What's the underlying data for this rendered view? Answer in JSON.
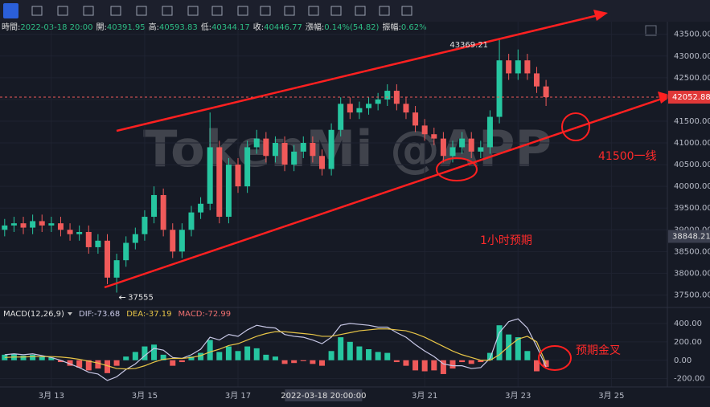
{
  "info_bar": [
    [
      "時間:",
      "2022-03-18 20:00"
    ],
    [
      "開:",
      "40391.95"
    ],
    [
      "高:",
      "40593.83"
    ],
    [
      "低:",
      "40344.17"
    ],
    [
      "收:",
      "40446.77"
    ],
    [
      "漲幅:",
      "0.14%(54.82)"
    ],
    [
      "振幅:",
      "0.62%"
    ]
  ],
  "annotations": {
    "support": "41500一线",
    "expectation": "1小时预期",
    "golden_cross": "预期金叉",
    "watermark": "TokenMi @APP"
  },
  "chart_data": [
    {
      "type": "candlestick",
      "x": [
        12,
        12.2,
        12.4,
        12.6,
        12.8,
        13,
        13.2,
        13.4,
        13.6,
        13.8,
        14,
        14.2,
        14.4,
        14.6,
        14.8,
        15,
        15.2,
        15.4,
        15.6,
        15.8,
        16,
        16.2,
        16.4,
        16.6,
        16.8,
        17,
        17.2,
        17.4,
        17.6,
        17.8,
        18,
        18.2,
        18.4,
        18.6,
        18.8,
        19,
        19.2,
        19.4,
        19.6,
        19.8,
        20,
        20.2,
        20.4,
        20.6,
        20.8,
        21,
        21.2,
        21.4,
        21.6,
        21.8,
        22,
        22.2,
        22.4,
        22.6,
        22.8,
        23,
        23.2,
        23.4,
        23.6
      ],
      "open": [
        39000,
        39100,
        39150,
        39050,
        39200,
        39100,
        39150,
        39000,
        38900,
        38950,
        38600,
        38750,
        37900,
        38300,
        38700,
        38900,
        39300,
        39800,
        39000,
        38500,
        39000,
        39400,
        39600,
        40900,
        39300,
        40500,
        40000,
        40900,
        41100,
        40700,
        41000,
        40500,
        40800,
        41000,
        40700,
        40400,
        41300,
        41900,
        41700,
        41800,
        41900,
        42000,
        42200,
        41900,
        41700,
        41400,
        41200,
        41100,
        40700,
        40900,
        41100,
        40800,
        40900,
        41600,
        42900,
        42600,
        42900,
        42600,
        42300
      ],
      "high": [
        39250,
        39300,
        39300,
        39350,
        39350,
        39300,
        39300,
        39150,
        39100,
        39100,
        38900,
        38900,
        38450,
        38850,
        39050,
        39450,
        40000,
        39950,
        39150,
        39150,
        39550,
        39750,
        41700,
        41050,
        40650,
        40650,
        41050,
        41300,
        41250,
        41150,
        41150,
        40950,
        41150,
        41150,
        40850,
        41450,
        42050,
        42050,
        41950,
        42050,
        42150,
        42350,
        42350,
        42050,
        41850,
        41550,
        41350,
        41250,
        41050,
        41250,
        41250,
        41050,
        41750,
        43369.21,
        43050,
        43150,
        43050,
        42750,
        42450
      ],
      "low": [
        38850,
        38950,
        38900,
        38900,
        38950,
        38950,
        38850,
        38750,
        38750,
        38450,
        38450,
        37750,
        37555,
        38150,
        38550,
        38750,
        39150,
        38850,
        38350,
        38350,
        38850,
        39250,
        39450,
        39150,
        39150,
        39850,
        39850,
        40750,
        40550,
        40550,
        40350,
        40350,
        40650,
        40550,
        40250,
        40250,
        41150,
        41550,
        41550,
        41650,
        41750,
        41850,
        41750,
        41550,
        41250,
        41050,
        40950,
        40550,
        40550,
        40750,
        40650,
        40650,
        40750,
        41450,
        42450,
        42450,
        42450,
        42150,
        41850
      ],
      "close": [
        39100,
        39150,
        39050,
        39200,
        39100,
        39150,
        39000,
        38900,
        38950,
        38600,
        38750,
        37900,
        38300,
        38700,
        38900,
        39300,
        39800,
        39000,
        38500,
        39000,
        39400,
        39600,
        40900,
        39300,
        40500,
        40000,
        40900,
        41100,
        40700,
        41000,
        40500,
        40800,
        41000,
        40700,
        40400,
        41300,
        41900,
        41700,
        41800,
        41900,
        42000,
        42200,
        41900,
        41700,
        41400,
        41200,
        41100,
        40700,
        40900,
        41100,
        40800,
        40900,
        41600,
        42900,
        42600,
        42900,
        42600,
        42300,
        42052.88
      ],
      "up_color": "#26c6a0",
      "down_color": "#f05a5a",
      "xlim": [
        11.9,
        26.2
      ],
      "xticks": [
        {
          "value": 13,
          "label": "3月 13"
        },
        {
          "value": 15,
          "label": "3月 15"
        },
        {
          "value": 17,
          "label": "3月 17"
        },
        {
          "value": 21,
          "label": "3月 21"
        },
        {
          "value": 23,
          "label": "3月 23"
        },
        {
          "value": 25,
          "label": "3月 25"
        }
      ],
      "ylim": [
        37250,
        43550
      ],
      "yticks": [
        {
          "value": 37500,
          "label": "37500.00"
        },
        {
          "value": 38000,
          "label": "38000.00"
        },
        {
          "value": 38500,
          "label": "38500.00"
        },
        {
          "value": 39000,
          "label": "39000.00"
        },
        {
          "value": 39500,
          "label": "39500.00"
        },
        {
          "value": 40000,
          "label": "40000.00"
        },
        {
          "value": 40500,
          "label": "40500.00"
        },
        {
          "value": 41000,
          "label": "41000.00"
        },
        {
          "value": 41500,
          "label": "41500.00"
        },
        {
          "value": 42000,
          "label": "42000.00"
        },
        {
          "value": 42500,
          "label": "42500.00"
        },
        {
          "value": 43000,
          "label": "43000.00"
        },
        {
          "value": 43500,
          "label": "43500.00"
        }
      ],
      "grid": true,
      "marker_price": 38848.21,
      "crosshair": {
        "value": 18.833,
        "label": "2022-03-18 20:00:00"
      }
    },
    {
      "type": "macd",
      "title": "MACD(12,26,9)",
      "series": [
        {
          "label": "DIF:-73.68",
          "color": "#c8c8e6",
          "values": [
            60,
            70,
            60,
            70,
            50,
            30,
            0,
            -40,
            -80,
            -130,
            -150,
            -220,
            -180,
            -100,
            -40,
            50,
            130,
            110,
            30,
            20,
            60,
            120,
            250,
            220,
            280,
            260,
            330,
            380,
            360,
            350,
            280,
            260,
            250,
            220,
            180,
            250,
            380,
            400,
            390,
            380,
            360,
            360,
            300,
            250,
            170,
            100,
            40,
            -40,
            -60,
            -60,
            -90,
            -80,
            20,
            300,
            420,
            450,
            350,
            150,
            -73.68
          ]
        },
        {
          "label": "DEA:-37.19",
          "color": "#e8c547",
          "values": [
            30,
            35,
            35,
            40,
            40,
            40,
            35,
            25,
            10,
            -10,
            -30,
            -60,
            -90,
            -95,
            -90,
            -60,
            -20,
            10,
            20,
            20,
            30,
            50,
            90,
            120,
            160,
            180,
            220,
            260,
            290,
            310,
            310,
            300,
            290,
            280,
            260,
            260,
            280,
            300,
            320,
            330,
            340,
            340,
            330,
            320,
            290,
            250,
            200,
            150,
            100,
            60,
            30,
            0,
            0,
            60,
            150,
            230,
            260,
            200,
            -37.19
          ]
        }
      ],
      "histogram": {
        "label": "MACD:-72.99",
        "color": "#f07070",
        "up_color": "#26c6a0",
        "down_color": "#f05a5a",
        "values": [
          60,
          70,
          50,
          60,
          40,
          30,
          -20,
          -60,
          -80,
          -110,
          -90,
          -140,
          -60,
          40,
          90,
          150,
          170,
          60,
          -60,
          -20,
          40,
          80,
          220,
          90,
          150,
          100,
          150,
          130,
          60,
          40,
          -40,
          -30,
          -10,
          -40,
          -60,
          100,
          250,
          200,
          150,
          120,
          90,
          80,
          -20,
          -60,
          -110,
          -120,
          -110,
          -150,
          -90,
          -20,
          -40,
          -20,
          80,
          380,
          280,
          250,
          100,
          -120,
          -72.99
        ]
      },
      "ylim": [
        -290,
        530
      ],
      "yticks": [
        {
          "value": 400,
          "label": "400.00"
        },
        {
          "value": 200,
          "label": "200.00"
        },
        {
          "value": 0,
          "label": "0.00"
        },
        {
          "value": -200,
          "label": "-200.00"
        }
      ]
    }
  ]
}
